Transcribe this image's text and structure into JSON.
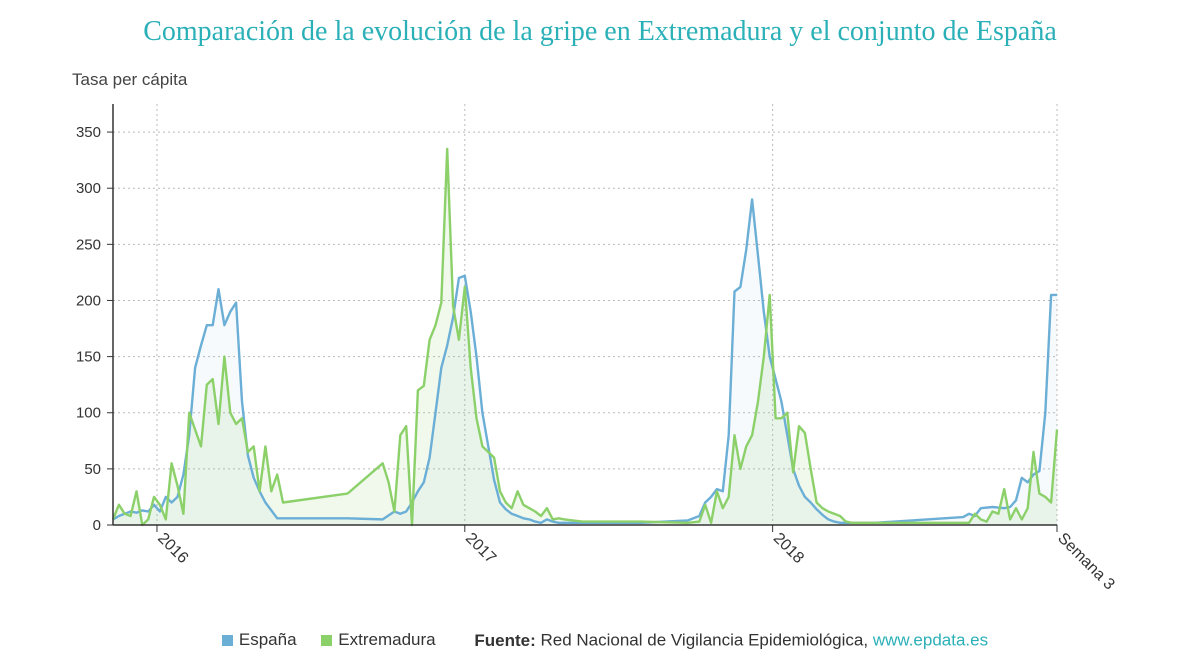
{
  "title": "Comparación de la evolución de la gripe en Extremadura y el conjunto de España",
  "legend": {
    "items": [
      {
        "label": "España",
        "color": "#6baed6"
      },
      {
        "label": "Extremadura",
        "color": "#8cd06a"
      }
    ],
    "source_label": "Fuente:",
    "source_text": "Red Nacional de Vigilancia Epidemiológica,",
    "source_link": "www.epdata.es"
  },
  "chart_data": {
    "type": "line",
    "title": "Comparación de la evolución de la gripe en Extremadura y el conjunto de España",
    "ylabel": "Tasa per cápita",
    "xlabel": "",
    "ylim": [
      0,
      375
    ],
    "yticks": [
      0,
      50,
      100,
      150,
      200,
      250,
      300,
      350
    ],
    "x_labels": [
      "2016",
      "2017",
      "2018",
      "Semana 3"
    ],
    "x_label_weeks": [
      7.5,
      60,
      112.5,
      161
    ],
    "grid": true,
    "legend_position": "bottom",
    "x_unit": "semana",
    "series": [
      {
        "name": "España",
        "color": "#6baed6",
        "x": [
          0,
          1,
          2,
          3,
          4,
          5,
          6,
          7,
          8,
          9,
          10,
          11,
          12,
          13,
          14,
          15,
          16,
          17,
          18,
          19,
          20,
          21,
          22,
          23,
          24,
          25,
          26,
          28,
          33,
          40,
          46,
          48,
          49,
          50,
          51,
          52,
          53,
          54,
          55,
          56,
          57,
          58,
          59,
          60,
          61,
          62,
          63,
          64,
          65,
          66,
          67,
          68,
          69,
          70,
          71,
          72,
          73,
          74,
          75,
          76,
          80,
          85,
          90,
          98,
          100,
          101,
          102,
          103,
          104,
          105,
          106,
          107,
          108,
          109,
          110,
          111,
          112,
          113,
          114,
          115,
          116,
          117,
          118,
          119,
          120,
          121,
          122,
          123,
          124,
          125,
          126,
          127,
          130,
          145,
          146,
          147,
          148,
          150,
          152,
          153,
          154,
          155,
          156,
          157,
          158,
          159,
          160,
          161
        ],
        "values": [
          5,
          8,
          10,
          12,
          11,
          13,
          12,
          18,
          12,
          25,
          20,
          25,
          45,
          80,
          140,
          160,
          178,
          178,
          210,
          178,
          190,
          198,
          110,
          62,
          42,
          30,
          20,
          6,
          6,
          6,
          5,
          12,
          10,
          12,
          20,
          30,
          38,
          60,
          100,
          140,
          160,
          185,
          220,
          222,
          190,
          150,
          100,
          70,
          40,
          20,
          14,
          10,
          8,
          6,
          5,
          3,
          2,
          5,
          3,
          2,
          2,
          2,
          2,
          4,
          8,
          20,
          25,
          32,
          30,
          80,
          208,
          212,
          245,
          290,
          240,
          190,
          150,
          130,
          110,
          80,
          50,
          35,
          25,
          20,
          14,
          9,
          5,
          3,
          2,
          2,
          2,
          2,
          2,
          7,
          10,
          8,
          15,
          16,
          15,
          16,
          22,
          42,
          38,
          45,
          48,
          100,
          205,
          205
        ]
      },
      {
        "name": "Extremadura",
        "color": "#8cd06a",
        "x": [
          0,
          1,
          2,
          3,
          4,
          5,
          6,
          7,
          8,
          9,
          10,
          11,
          12,
          13,
          14,
          15,
          16,
          17,
          18,
          19,
          20,
          21,
          22,
          23,
          24,
          25,
          26,
          27,
          28,
          29,
          40,
          46,
          47,
          48,
          49,
          50,
          51,
          52,
          53,
          54,
          55,
          56,
          57,
          58,
          59,
          60,
          61,
          62,
          63,
          64,
          65,
          66,
          67,
          68,
          69,
          70,
          71,
          72,
          73,
          74,
          75,
          76,
          77,
          80,
          90,
          98,
          100,
          101,
          102,
          103,
          104,
          105,
          106,
          107,
          108,
          109,
          110,
          111,
          112,
          113,
          114,
          115,
          116,
          117,
          118,
          119,
          120,
          121,
          122,
          123,
          124,
          125,
          126,
          127,
          130,
          145,
          146,
          147,
          148,
          149,
          150,
          151,
          152,
          153,
          154,
          155,
          156,
          157,
          158,
          159,
          160,
          161
        ],
        "values": [
          5,
          18,
          10,
          8,
          30,
          0,
          5,
          25,
          18,
          5,
          55,
          35,
          10,
          100,
          85,
          70,
          125,
          130,
          90,
          150,
          100,
          90,
          95,
          65,
          70,
          30,
          70,
          30,
          45,
          20,
          28,
          55,
          38,
          12,
          80,
          88,
          0,
          120,
          124,
          165,
          178,
          198,
          335,
          195,
          165,
          212,
          140,
          95,
          70,
          65,
          60,
          30,
          20,
          15,
          30,
          18,
          15,
          12,
          8,
          15,
          5,
          6,
          5,
          3,
          3,
          2,
          3,
          18,
          2,
          30,
          15,
          25,
          80,
          50,
          70,
          80,
          110,
          150,
          205,
          95,
          95,
          100,
          47,
          88,
          82,
          50,
          20,
          15,
          12,
          10,
          8,
          3,
          2,
          2,
          2,
          2,
          2,
          10,
          5,
          3,
          12,
          10,
          32,
          5,
          15,
          5,
          15,
          65,
          28,
          25,
          20,
          85
        ]
      }
    ]
  }
}
